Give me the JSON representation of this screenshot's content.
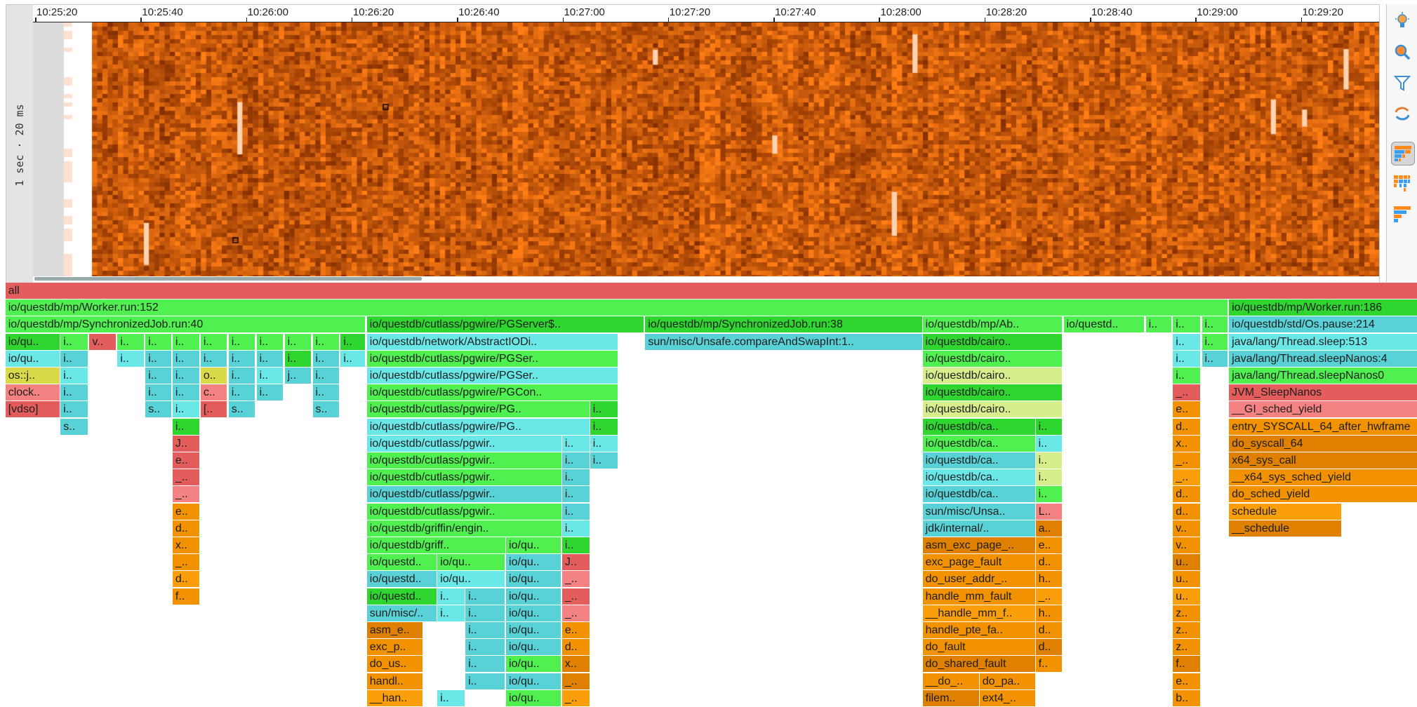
{
  "heatmap": {
    "y_axis_label": "1 sec · 20 ms",
    "time_ticks": [
      "10:25:20",
      "10:25:40",
      "10:26:00",
      "10:26:20",
      "10:26:40",
      "10:27:00",
      "10:27:20",
      "10:27:40",
      "10:28:00",
      "10:28:20",
      "10:28:40",
      "10:29:00",
      "10:29:20"
    ],
    "colors": {
      "low": "#8a3200",
      "high": "#ff7a10",
      "empty": "#ffffff",
      "noData": "#dcdcdc"
    }
  },
  "toolbar": {
    "buttons": [
      {
        "icon": "lightbulb-icon"
      },
      {
        "icon": "search-icon"
      },
      {
        "icon": "filter-icon"
      },
      {
        "icon": "refresh-icon"
      },
      {
        "icon": "flamegraph-view-icon",
        "selected": true
      },
      {
        "icon": "icicle-view-icon"
      },
      {
        "icon": "tree-view-icon"
      }
    ]
  },
  "palette": {
    "R": "#e35d5d",
    "P": "#f58282",
    "G": "#4ff04f",
    "D": "#2fd62f",
    "C": "#6ae8e8",
    "T": "#58d2d6",
    "Y": "#d9d94a",
    "E": "#d7ee8c",
    "O": "#f29200",
    "L": "#fb9e0c",
    "K": "#e08000"
  },
  "flamegraph": {
    "rows": [
      [
        {
          "t": "all",
          "c": "R"
        }
      ],
      [
        {
          "t": "io/questdb/mp/Worker.run:152",
          "c": "G"
        },
        {
          "t": "io/questdb/mp/Worker.run:186",
          "c": "D"
        }
      ],
      [
        {
          "t": "io/questdb/mp/SynchronizedJob.run:40",
          "c": "G"
        },
        {
          "t": "io/questdb/cutlass/pgwire/PGServer$..",
          "c": "D"
        },
        {
          "t": "io/questdb/mp/SynchronizedJob.run:38",
          "c": "D"
        },
        {
          "t": "io/questdb/mp/Ab..",
          "c": "G"
        },
        {
          "t": "io/questd..",
          "c": "G"
        },
        {
          "t": "i..",
          "c": "G"
        },
        {
          "t": "i..",
          "c": "G"
        },
        {
          "t": "i..",
          "c": "G"
        },
        {
          "t": "io/questdb/std/Os.pause:214",
          "c": "T"
        }
      ],
      [
        {
          "t": "io/qu..",
          "c": "D"
        },
        {
          "t": "i..",
          "c": "G"
        },
        {
          "t": "v..",
          "c": "R"
        },
        {
          "t": "i..",
          "c": "G"
        },
        {
          "t": "i..",
          "c": "G"
        },
        {
          "t": "i..",
          "c": "G"
        },
        {
          "t": "i..",
          "c": "G"
        },
        {
          "t": "i..",
          "c": "G"
        },
        {
          "t": "i..",
          "c": "G"
        },
        {
          "t": "i..",
          "c": "G"
        },
        {
          "t": "i..",
          "c": "G"
        },
        {
          "t": "i..",
          "c": "D"
        },
        {
          "t": "io/questdb/network/AbstractIODi..",
          "c": "C"
        },
        {
          "t": "sun/misc/Unsafe.compareAndSwapInt:1..",
          "c": "T"
        },
        {
          "t": "io/questdb/cairo..",
          "c": "D"
        },
        {
          "t": "i..",
          "c": "C"
        },
        {
          "t": "i..",
          "c": "G"
        },
        {
          "t": "java/lang/Thread.sleep:513",
          "c": "C"
        }
      ],
      [
        {
          "t": "io/qu..",
          "c": "C"
        },
        {
          "t": "i..",
          "c": "T"
        },
        {
          "t": "i..",
          "c": "C"
        },
        {
          "t": "i..",
          "c": "T"
        },
        {
          "t": "i..",
          "c": "T"
        },
        {
          "t": "i..",
          "c": "T"
        },
        {
          "t": "i..",
          "c": "T"
        },
        {
          "t": "i..",
          "c": "T"
        },
        {
          "t": "i..",
          "c": "D"
        },
        {
          "t": "i..",
          "c": "T"
        },
        {
          "t": "i..",
          "c": "C"
        },
        {
          "t": "io/questdb/cutlass/pgwire/PGSer..",
          "c": "G"
        },
        {
          "t": "io/questdb/cairo..",
          "c": "G"
        },
        {
          "t": "i..",
          "c": "C"
        },
        {
          "t": "i..",
          "c": "T"
        },
        {
          "t": "java/lang/Thread.sleepNanos:4",
          "c": "T"
        }
      ],
      [
        {
          "t": "os::j..",
          "c": "Y"
        },
        {
          "t": "i..",
          "c": "C"
        },
        {
          "t": "i..",
          "c": "T"
        },
        {
          "t": "i..",
          "c": "T"
        },
        {
          "t": "o..",
          "c": "Y"
        },
        {
          "t": "i..",
          "c": "T"
        },
        {
          "t": "i..",
          "c": "C"
        },
        {
          "t": "j..",
          "c": "T"
        },
        {
          "t": "i..",
          "c": "T"
        },
        {
          "t": "io/questdb/cutlass/pgwire/PGSer..",
          "c": "C"
        },
        {
          "t": "io/questdb/cairo..",
          "c": "E"
        },
        {
          "t": "i..",
          "c": "G"
        },
        {
          "t": "java/lang/Thread.sleepNanos0",
          "c": "G"
        }
      ],
      [
        {
          "t": "clock..",
          "c": "P"
        },
        {
          "t": "i..",
          "c": "T"
        },
        {
          "t": "i..",
          "c": "T"
        },
        {
          "t": "i..",
          "c": "T"
        },
        {
          "t": "c..",
          "c": "P"
        },
        {
          "t": "i..",
          "c": "T"
        },
        {
          "t": "i..",
          "c": "T"
        },
        {
          "t": "i..",
          "c": "T"
        },
        {
          "t": "io/questdb/cutlass/pgwire/PGCon..",
          "c": "G"
        },
        {
          "t": "io/questdb/cairo..",
          "c": "D"
        },
        {
          "t": "_..",
          "c": "R"
        },
        {
          "t": "JVM_SleepNanos",
          "c": "R"
        }
      ],
      [
        {
          "t": "[vdso]",
          "c": "R"
        },
        {
          "t": "i..",
          "c": "T"
        },
        {
          "t": "s..",
          "c": "T"
        },
        {
          "t": "i..",
          "c": "C"
        },
        {
          "t": "[..",
          "c": "R"
        },
        {
          "t": "s..",
          "c": "T"
        },
        {
          "t": "s..",
          "c": "T"
        },
        {
          "t": "io/questdb/cutlass/pgwire/PG..",
          "c": "G"
        },
        {
          "t": "i..",
          "c": "D"
        },
        {
          "t": "io/questdb/cairo..",
          "c": "E"
        },
        {
          "t": "e..",
          "c": "O"
        },
        {
          "t": "__GI_sched_yield",
          "c": "P"
        }
      ],
      [
        {
          "t": "s..",
          "c": "T"
        },
        {
          "t": "i..",
          "c": "D"
        },
        {
          "t": "io/questdb/cutlass/pgwire/PG..",
          "c": "C"
        },
        {
          "t": "i..",
          "c": "D"
        },
        {
          "t": "io/questdb/ca..",
          "c": "D"
        },
        {
          "t": "i..",
          "c": "D"
        },
        {
          "t": "d..",
          "c": "O"
        },
        {
          "t": "entry_SYSCALL_64_after_hwframe",
          "c": "O"
        }
      ],
      [
        {
          "t": "J..",
          "c": "R"
        },
        {
          "t": "io/questdb/cutlass/pgwir..",
          "c": "C"
        },
        {
          "t": "i..",
          "c": "C"
        },
        {
          "t": "i..",
          "c": "C"
        },
        {
          "t": "io/questdb/ca..",
          "c": "G"
        },
        {
          "t": "i..",
          "c": "C"
        },
        {
          "t": "x..",
          "c": "O"
        },
        {
          "t": "do_syscall_64",
          "c": "K"
        }
      ],
      [
        {
          "t": "e..",
          "c": "R"
        },
        {
          "t": "io/questdb/cutlass/pgwir..",
          "c": "G"
        },
        {
          "t": "i..",
          "c": "T"
        },
        {
          "t": "i..",
          "c": "T"
        },
        {
          "t": "io/questdb/ca..",
          "c": "T"
        },
        {
          "t": "i..",
          "c": "E"
        },
        {
          "t": "_..",
          "c": "O"
        },
        {
          "t": "x64_sys_call",
          "c": "K"
        }
      ],
      [
        {
          "t": "_..",
          "c": "R"
        },
        {
          "t": "io/questdb/cutlass/pgwir..",
          "c": "G"
        },
        {
          "t": "i..",
          "c": "T"
        },
        {
          "t": "io/questdb/ca..",
          "c": "C"
        },
        {
          "t": "i..",
          "c": "E"
        },
        {
          "t": "_..",
          "c": "L"
        },
        {
          "t": "__x64_sys_sched_yield",
          "c": "O"
        }
      ],
      [
        {
          "t": "_..",
          "c": "P"
        },
        {
          "t": "io/questdb/cutlass/pgwir..",
          "c": "T"
        },
        {
          "t": "i..",
          "c": "T"
        },
        {
          "t": "io/questdb/ca..",
          "c": "T"
        },
        {
          "t": "i..",
          "c": "G"
        },
        {
          "t": "d..",
          "c": "O"
        },
        {
          "t": "do_sched_yield",
          "c": "O"
        }
      ],
      [
        {
          "t": "e..",
          "c": "O"
        },
        {
          "t": "io/questdb/cutlass/pgwir..",
          "c": "G"
        },
        {
          "t": "i..",
          "c": "T"
        },
        {
          "t": "sun/misc/Unsa..",
          "c": "T"
        },
        {
          "t": "L..",
          "c": "P"
        },
        {
          "t": "d..",
          "c": "O"
        },
        {
          "t": "schedule",
          "c": "L"
        }
      ],
      [
        {
          "t": "d..",
          "c": "O"
        },
        {
          "t": "io/questdb/griffin/engin..",
          "c": "G"
        },
        {
          "t": "i..",
          "c": "C"
        },
        {
          "t": "jdk/internal/..",
          "c": "T"
        },
        {
          "t": "a..",
          "c": "K"
        },
        {
          "t": "v..",
          "c": "O"
        },
        {
          "t": "__schedule",
          "c": "K"
        }
      ],
      [
        {
          "t": "x..",
          "c": "O"
        },
        {
          "t": "io/questdb/griff..",
          "c": "G"
        },
        {
          "t": "io/qu..",
          "c": "G"
        },
        {
          "t": "i..",
          "c": "D"
        },
        {
          "t": "asm_exc_page_..",
          "c": "K"
        },
        {
          "t": "e..",
          "c": "O"
        },
        {
          "t": "v..",
          "c": "O"
        }
      ],
      [
        {
          "t": "_..",
          "c": "O"
        },
        {
          "t": "io/questd..",
          "c": "G"
        },
        {
          "t": "io/qu..",
          "c": "G"
        },
        {
          "t": "io/qu..",
          "c": "T"
        },
        {
          "t": "J..",
          "c": "R"
        },
        {
          "t": "exc_page_fault",
          "c": "O"
        },
        {
          "t": "d..",
          "c": "O"
        },
        {
          "t": "u..",
          "c": "K"
        }
      ],
      [
        {
          "t": "d..",
          "c": "L"
        },
        {
          "t": "io/questd..",
          "c": "T"
        },
        {
          "t": "io/qu..",
          "c": "C"
        },
        {
          "t": "io/qu..",
          "c": "T"
        },
        {
          "t": "_..",
          "c": "P"
        },
        {
          "t": "do_user_addr_..",
          "c": "O"
        },
        {
          "t": "h..",
          "c": "O"
        },
        {
          "t": "u..",
          "c": "O"
        }
      ],
      [
        {
          "t": "f..",
          "c": "O"
        },
        {
          "t": "io/questd..",
          "c": "D"
        },
        {
          "t": "i..",
          "c": "C"
        },
        {
          "t": "i..",
          "c": "T"
        },
        {
          "t": "io/qu..",
          "c": "T"
        },
        {
          "t": "_..",
          "c": "R"
        },
        {
          "t": "handle_mm_fault",
          "c": "O"
        },
        {
          "t": "_..",
          "c": "L"
        },
        {
          "t": "u..",
          "c": "L"
        }
      ],
      [
        {
          "t": "sun/misc/..",
          "c": "T"
        },
        {
          "t": "i..",
          "c": "C"
        },
        {
          "t": "i..",
          "c": "T"
        },
        {
          "t": "io/qu..",
          "c": "T"
        },
        {
          "t": "_..",
          "c": "P"
        },
        {
          "t": "__handle_mm_f..",
          "c": "L"
        },
        {
          "t": "h..",
          "c": "O"
        },
        {
          "t": "z..",
          "c": "O"
        }
      ],
      [
        {
          "t": "asm_e..",
          "c": "K"
        },
        {
          "t": "i..",
          "c": "T"
        },
        {
          "t": "io/qu..",
          "c": "T"
        },
        {
          "t": "e..",
          "c": "O"
        },
        {
          "t": "handle_pte_fa..",
          "c": "O"
        },
        {
          "t": "d..",
          "c": "O"
        },
        {
          "t": "z..",
          "c": "O"
        }
      ],
      [
        {
          "t": "exc_p..",
          "c": "O"
        },
        {
          "t": "i..",
          "c": "T"
        },
        {
          "t": "io/qu..",
          "c": "T"
        },
        {
          "t": "d..",
          "c": "O"
        },
        {
          "t": "do_fault",
          "c": "O"
        },
        {
          "t": "d..",
          "c": "K"
        },
        {
          "t": "z..",
          "c": "O"
        }
      ],
      [
        {
          "t": "do_us..",
          "c": "O"
        },
        {
          "t": "i..",
          "c": "T"
        },
        {
          "t": "io/qu..",
          "c": "G"
        },
        {
          "t": "x..",
          "c": "K"
        },
        {
          "t": "do_shared_fault",
          "c": "K"
        },
        {
          "t": "f..",
          "c": "O"
        },
        {
          "t": "f..",
          "c": "K"
        }
      ],
      [
        {
          "t": "handl..",
          "c": "O"
        },
        {
          "t": "i..",
          "c": "T"
        },
        {
          "t": "io/qu..",
          "c": "T"
        },
        {
          "t": "_..",
          "c": "K"
        },
        {
          "t": "__do_..",
          "c": "O"
        },
        {
          "t": "do_pa..",
          "c": "O"
        },
        {
          "t": "e..",
          "c": "O"
        }
      ],
      [
        {
          "t": "__han..",
          "c": "L"
        },
        {
          "t": "i..",
          "c": "C"
        },
        {
          "t": "io/qu..",
          "c": "G"
        },
        {
          "t": "_..",
          "c": "L"
        },
        {
          "t": "filem..",
          "c": "K"
        },
        {
          "t": "ext4_..",
          "c": "O"
        },
        {
          "t": "b..",
          "c": "O"
        }
      ]
    ]
  }
}
